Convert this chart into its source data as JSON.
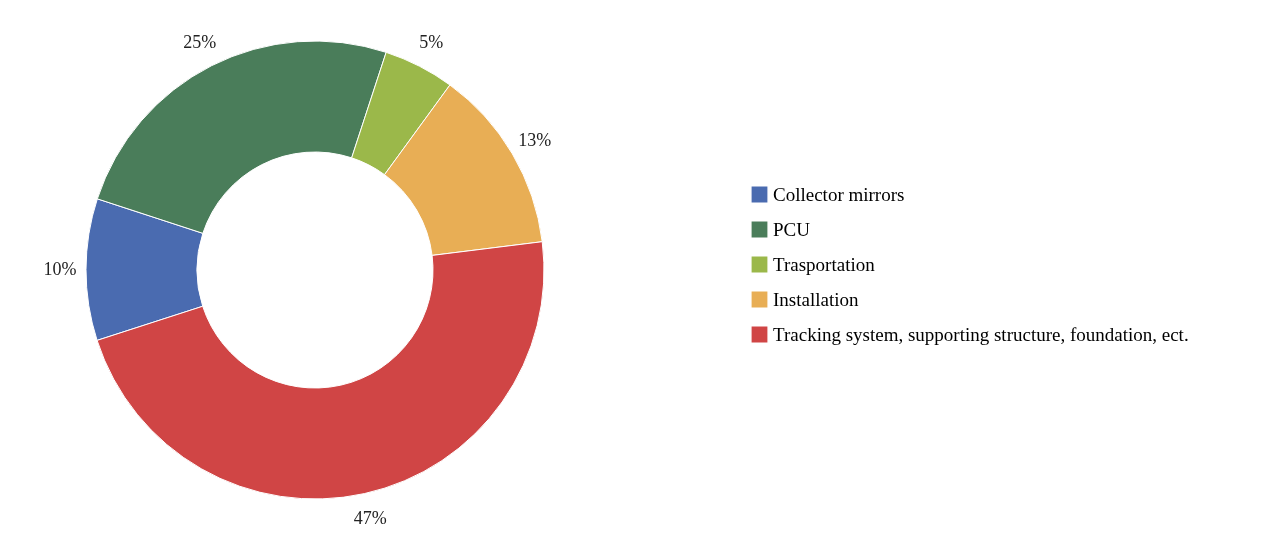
{
  "chart_data": {
    "type": "donut",
    "categories": [
      "Collector mirrors",
      "PCU",
      "Trasportation",
      "Installation",
      "Tracking system, supporting structure, foundation, ect."
    ],
    "values": [
      10,
      25,
      5,
      13,
      47
    ],
    "value_labels": [
      "10%",
      "25%",
      "5%",
      "13%",
      "47%"
    ],
    "colors": [
      "#4a6bb0",
      "#4a7d5a",
      "#9bb84a",
      "#e8ae55",
      "#d04545"
    ],
    "legend": "right"
  }
}
